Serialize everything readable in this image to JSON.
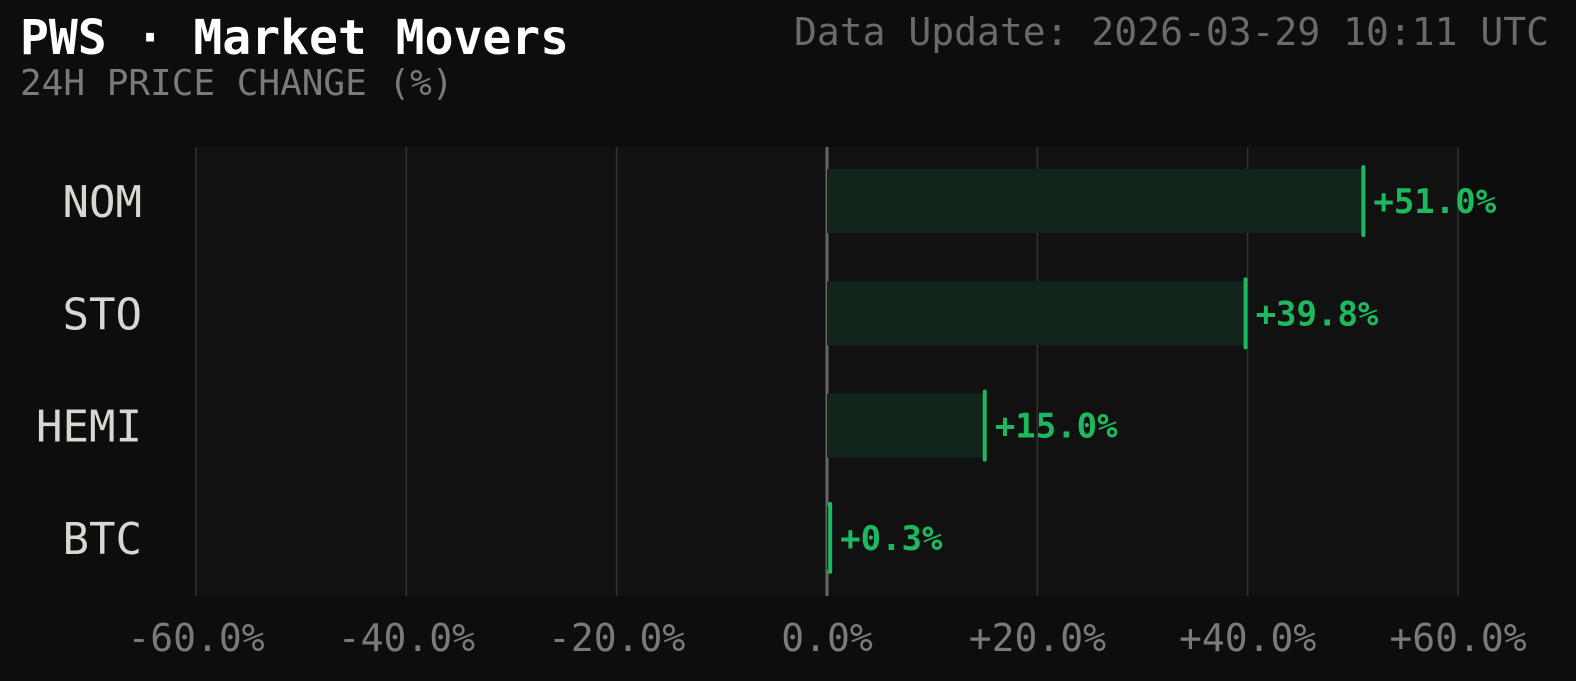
{
  "header": {
    "title": "PWS · Market Movers",
    "subtitle": "24H PRICE CHANGE (%)",
    "update": "Data Update: 2026-03-29 10:11 UTC"
  },
  "colors": {
    "background": "#0d0d0d",
    "plot_background": "#111111",
    "grid": "#333333",
    "zero_line": "#666666",
    "positive": "#1db961",
    "positive_bar_fill": "#12251b",
    "tick_text": "#7a7a7a",
    "category_text": "#d8d8d0"
  },
  "chart_data": {
    "type": "bar",
    "orientation": "horizontal",
    "categories": [
      "NOM",
      "STO",
      "HEMI",
      "BTC"
    ],
    "values": [
      51.0,
      39.8,
      15.0,
      0.3
    ],
    "value_labels": [
      "+51.0%",
      "+39.8%",
      "+15.0%",
      "+0.3%"
    ],
    "xlim": [
      -60,
      60
    ],
    "xticks": [
      -60,
      -40,
      -20,
      0,
      20,
      40,
      60
    ],
    "xtick_labels": [
      "-60.0%",
      "-40.0%",
      "-20.0%",
      "0.0%",
      "+20.0%",
      "+40.0%",
      "+60.0%"
    ],
    "grid": true
  }
}
